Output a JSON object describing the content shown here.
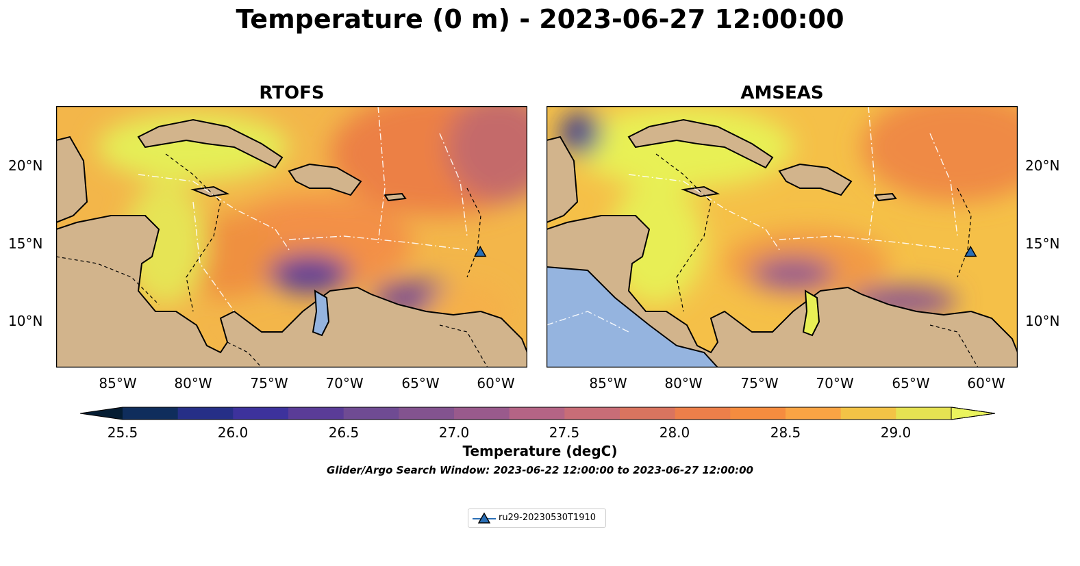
{
  "figure": {
    "title": "Temperature (0 m) - 2023-06-27 12:00:00",
    "window_note": "Glider/Argo Search Window: 2023-06-22 12:00:00 to 2023-06-27 12:00:00"
  },
  "panels": [
    {
      "title": "RTOFS"
    },
    {
      "title": "AMSEAS"
    }
  ],
  "axes": {
    "lon_labels": [
      "85°W",
      "80°W",
      "75°W",
      "70°W",
      "65°W",
      "60°W"
    ],
    "lat_labels": [
      "20°N",
      "15°N",
      "10°N"
    ],
    "lon_range": [
      -89,
      -58
    ],
    "lat_range": [
      7,
      24
    ]
  },
  "colorbar": {
    "label": "Temperature (degC)",
    "ticks": [
      "25.5",
      "26.0",
      "26.5",
      "27.0",
      "27.5",
      "28.0",
      "28.5",
      "29.0"
    ],
    "range": [
      25.5,
      29.25
    ],
    "colors": [
      "#041c32",
      "#0f2d5c",
      "#262f87",
      "#3d329c",
      "#5a3c97",
      "#6f4b93",
      "#83538f",
      "#995a8c",
      "#b46485",
      "#c86d77",
      "#d9745f",
      "#ec7f4a",
      "#f58c3f",
      "#f9a444",
      "#f3c346",
      "#e5e252",
      "#eaf45d"
    ],
    "extend": "both"
  },
  "legend": {
    "label": "ru29-20230530T1910",
    "marker_color": "#2a6eb5"
  },
  "glider": {
    "lon": -61.1,
    "lat": 14.5
  },
  "map_colors": {
    "land": "#d2b48c",
    "ocean_warm": "#f5c343",
    "ocean_hot": "#f09040",
    "ocean_cool": "#6b4a95",
    "ocean_yellow": "#e9f256",
    "pacific_mask": "#95b4df",
    "lakes": "#a6b6d0"
  }
}
